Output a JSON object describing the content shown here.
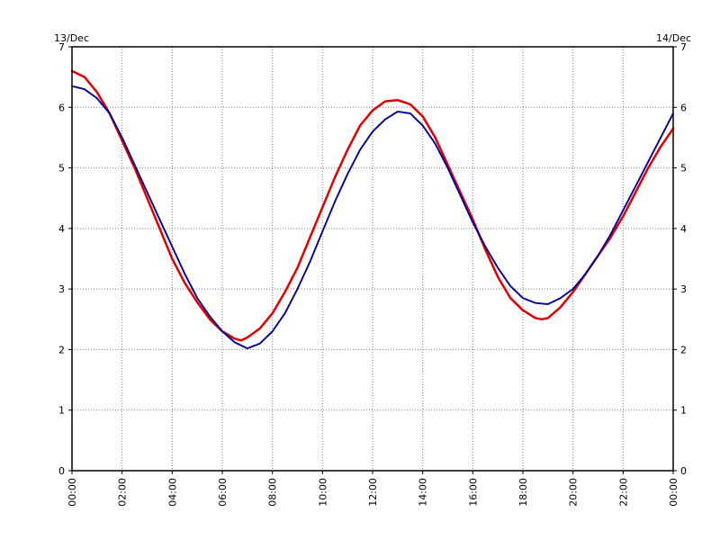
{
  "chart_data": {
    "type": "line",
    "title": "",
    "xlabel": "",
    "ylabel": "",
    "date_labels": {
      "left": "13/Dec",
      "right": "14/Dec"
    },
    "x_ticks": [
      "00:00",
      "02:00",
      "04:00",
      "06:00",
      "08:00",
      "10:00",
      "12:00",
      "14:00",
      "16:00",
      "18:00",
      "20:00",
      "22:00",
      "00:00"
    ],
    "x_range_hours": [
      0,
      24
    ],
    "ylim": [
      0,
      7
    ],
    "y_ticks": [
      0,
      1,
      2,
      3,
      4,
      5,
      6,
      7
    ],
    "grid": true,
    "legend": "none",
    "series": [
      {
        "style": "solid",
        "color": "#e00000",
        "x_hours": [
          0,
          0.5,
          1,
          1.5,
          2,
          2.5,
          3,
          3.5,
          4,
          4.5,
          5,
          5.5,
          6,
          6.5,
          6.75,
          7,
          7.5,
          8,
          8.5,
          9,
          9.5,
          10,
          10.5,
          11,
          11.5,
          12,
          12.5,
          13,
          13.5,
          14,
          14.5,
          15,
          15.5,
          16,
          16.5,
          17,
          17.5,
          18,
          18.5,
          18.75,
          19,
          19.5,
          20,
          20.5,
          21,
          21.5,
          22,
          22.5,
          23,
          23.5,
          24
        ],
        "values": [
          6.6,
          6.5,
          6.25,
          5.9,
          5.45,
          5.0,
          4.5,
          4.0,
          3.5,
          3.1,
          2.78,
          2.5,
          2.3,
          2.18,
          2.15,
          2.2,
          2.35,
          2.6,
          2.95,
          3.35,
          3.85,
          4.35,
          4.85,
          5.3,
          5.7,
          5.95,
          6.1,
          6.12,
          6.05,
          5.85,
          5.5,
          5.05,
          4.6,
          4.15,
          3.65,
          3.2,
          2.85,
          2.65,
          2.52,
          2.5,
          2.52,
          2.7,
          2.95,
          3.25,
          3.55,
          3.85,
          4.2,
          4.6,
          5.0,
          5.35,
          5.65
        ]
      },
      {
        "style": "dotted",
        "color": "#000090",
        "x_hours": [
          0,
          0.5,
          1,
          1.5,
          2,
          2.5,
          3,
          3.5,
          4,
          4.5,
          5,
          5.5,
          6,
          6.5,
          7,
          7.5,
          8,
          8.5,
          9,
          9.5,
          10,
          10.5,
          11,
          11.5,
          12,
          12.5,
          13,
          13.5,
          14,
          14.5,
          15,
          15.5,
          16,
          16.5,
          17,
          17.5,
          18,
          18.5,
          19,
          19.5,
          20,
          20.5,
          21,
          21.5,
          22,
          22.5,
          23,
          23.5,
          24
        ],
        "values": [
          6.35,
          6.3,
          6.15,
          5.9,
          5.5,
          5.05,
          4.6,
          4.15,
          3.7,
          3.25,
          2.85,
          2.55,
          2.3,
          2.12,
          2.02,
          2.1,
          2.3,
          2.6,
          3.0,
          3.45,
          3.95,
          4.45,
          4.9,
          5.3,
          5.6,
          5.8,
          5.93,
          5.9,
          5.7,
          5.4,
          5.0,
          4.55,
          4.1,
          3.7,
          3.35,
          3.05,
          2.85,
          2.77,
          2.75,
          2.85,
          3.0,
          3.25,
          3.55,
          3.9,
          4.3,
          4.7,
          5.1,
          5.5,
          5.9
        ]
      }
    ]
  }
}
